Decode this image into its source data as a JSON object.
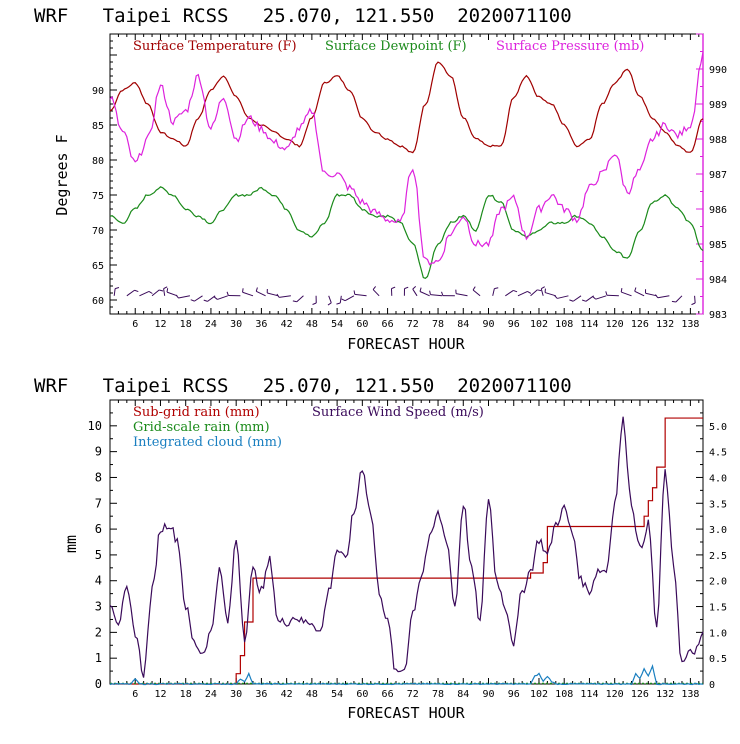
{
  "charts": [
    {
      "title": "WRF   Taipei RCSS   25.070, 121.550  2020071100",
      "xlabel": "FORECAST HOUR",
      "ylabel": "Degrees F",
      "legend": [
        "Surface Temperature (F)",
        "Surface Dewpoint (F)",
        "Surface Pressure (mb)"
      ],
      "x_ticks": [
        "6",
        "12",
        "18",
        "24",
        "30",
        "36",
        "42",
        "48",
        "54",
        "60",
        "66",
        "72",
        "78",
        "84",
        "90",
        "96",
        "102",
        "108",
        "114",
        "120",
        "126",
        "132",
        "138"
      ],
      "y_left_ticks": [
        "60",
        "65",
        "70",
        "75",
        "80",
        "85",
        "90"
      ],
      "y_right_ticks": [
        "983",
        "984",
        "985",
        "986",
        "987",
        "988",
        "989",
        "990"
      ]
    },
    {
      "title": "WRF   Taipei RCSS   25.070, 121.550  2020071100",
      "xlabel": "FORECAST HOUR",
      "ylabel": "mm",
      "legend": [
        "Sub-grid rain (mm)",
        "Surface Wind Speed (m/s)",
        "Grid-scale rain (mm)",
        "Integrated cloud (mm)"
      ],
      "x_ticks": [
        "6",
        "12",
        "18",
        "24",
        "30",
        "36",
        "42",
        "48",
        "54",
        "60",
        "66",
        "72",
        "78",
        "84",
        "90",
        "96",
        "102",
        "108",
        "114",
        "120",
        "126",
        "132",
        "138"
      ],
      "y_left_ticks": [
        "0",
        "1",
        "2",
        "3",
        "4",
        "5",
        "6",
        "7",
        "8",
        "9",
        "10"
      ],
      "y_right_ticks": [
        "0",
        "0.5",
        "1.0",
        "1.5",
        "2.0",
        "2.5",
        "3.0",
        "3.5",
        "4.0",
        "4.5",
        "5.0"
      ]
    }
  ],
  "colors": {
    "temperature": "#a00000",
    "dewpoint": "#1a8a1a",
    "pressure": "#dd22dd",
    "wind": "#3a0a5a",
    "subgrid_rain": "#b00000",
    "gridscale_rain": "#1a8a1a",
    "cloud": "#1a7fc0",
    "axis_right_top": "#dd22dd"
  },
  "chart_data": [
    {
      "type": "line",
      "title": "WRF   Taipei RCSS   25.070, 121.550  2020071100",
      "xlabel": "FORECAST HOUR",
      "ylabel": "Degrees F",
      "xlim": [
        0,
        141
      ],
      "ylim": [
        58,
        98
      ],
      "y2lim": [
        983,
        991
      ],
      "series": [
        {
          "name": "Surface Temperature (F)",
          "axis": "left",
          "x": [
            0,
            3,
            6,
            9,
            12,
            15,
            18,
            21,
            24,
            27,
            30,
            33,
            36,
            39,
            42,
            45,
            48,
            51,
            54,
            57,
            60,
            63,
            66,
            69,
            72,
            75,
            78,
            81,
            84,
            87,
            90,
            93,
            96,
            99,
            102,
            105,
            108,
            111,
            114,
            117,
            120,
            123,
            126,
            129,
            132,
            135,
            138,
            141
          ],
          "y": [
            87,
            90,
            91,
            88,
            84,
            83,
            82,
            86,
            90,
            92,
            89,
            86,
            85,
            84,
            83,
            82,
            86,
            91,
            92,
            90,
            86,
            84,
            83,
            82,
            81,
            88,
            94,
            92,
            86,
            83,
            82,
            82,
            89,
            92,
            89,
            88,
            85,
            82,
            83,
            88,
            91,
            93,
            89,
            86,
            84,
            82,
            81,
            86
          ]
        },
        {
          "name": "Surface Dewpoint (F)",
          "axis": "left",
          "x": [
            0,
            3,
            6,
            9,
            12,
            15,
            18,
            21,
            24,
            27,
            30,
            33,
            36,
            39,
            42,
            45,
            48,
            51,
            54,
            57,
            60,
            63,
            66,
            69,
            72,
            75,
            78,
            81,
            84,
            87,
            90,
            93,
            96,
            99,
            102,
            105,
            108,
            111,
            114,
            117,
            120,
            123,
            126,
            129,
            132,
            135,
            138,
            141
          ],
          "y": [
            72,
            71,
            73,
            75,
            76,
            75,
            73,
            72,
            71,
            73,
            75,
            75,
            76,
            75,
            73,
            70,
            69,
            71,
            75,
            75,
            73,
            72,
            72,
            71,
            68,
            63,
            68,
            71,
            72,
            70,
            75,
            74,
            70,
            69,
            70,
            71,
            71,
            72,
            71,
            69,
            67,
            66,
            70,
            74,
            75,
            73,
            71,
            67
          ]
        },
        {
          "name": "Surface Pressure (mb)",
          "axis": "right",
          "x": [
            0,
            3,
            6,
            9,
            12,
            15,
            18,
            21,
            24,
            27,
            30,
            33,
            36,
            39,
            42,
            45,
            48,
            51,
            54,
            57,
            60,
            63,
            66,
            69,
            72,
            75,
            78,
            81,
            84,
            87,
            90,
            93,
            96,
            99,
            102,
            105,
            108,
            111,
            114,
            117,
            120,
            123,
            126,
            129,
            132,
            135,
            138,
            141
          ],
          "y": [
            989.2,
            988.2,
            987.3,
            988.0,
            989.5,
            988.5,
            988.8,
            989.8,
            988.3,
            989.2,
            988.0,
            988.6,
            988.3,
            987.9,
            987.7,
            988.3,
            988.8,
            987.0,
            987.0,
            986.6,
            986.2,
            985.9,
            985.7,
            985.6,
            987.2,
            984.5,
            984.5,
            985.3,
            985.8,
            985.0,
            985.0,
            986.0,
            986.3,
            985.2,
            986.0,
            986.4,
            986.0,
            985.7,
            986.6,
            987.0,
            987.6,
            986.5,
            987.1,
            988.0,
            988.4,
            988.1,
            988.4,
            990.4
          ]
        }
      ],
      "wind_barbs": true
    },
    {
      "type": "line",
      "title": "WRF   Taipei RCSS   25.070, 121.550  2020071100",
      "xlabel": "FORECAST HOUR",
      "ylabel": "mm",
      "xlim": [
        0,
        141
      ],
      "ylim": [
        0,
        11
      ],
      "y2lim": [
        0,
        5.5
      ],
      "series": [
        {
          "name": "Sub-grid rain (mm)",
          "axis": "left",
          "step": true,
          "x": [
            0,
            29,
            30,
            31,
            32,
            33,
            34,
            35,
            98,
            99,
            100,
            102,
            103,
            104,
            125,
            126,
            127,
            128,
            129,
            130,
            131,
            132,
            141
          ],
          "y": [
            0,
            0,
            0.4,
            1.1,
            2.4,
            2.4,
            4.1,
            4.1,
            4.1,
            4.1,
            4.3,
            4.3,
            4.7,
            6.1,
            6.1,
            6.1,
            6.5,
            7.1,
            7.6,
            8.4,
            8.4,
            10.3,
            10.3
          ]
        },
        {
          "name": "Surface Wind Speed (m/s)",
          "axis": "right",
          "x": [
            0,
            2,
            4,
            6,
            8,
            10,
            12,
            14,
            16,
            18,
            20,
            22,
            24,
            26,
            28,
            30,
            32,
            34,
            36,
            38,
            40,
            42,
            44,
            46,
            48,
            50,
            52,
            54,
            56,
            58,
            60,
            62,
            64,
            66,
            68,
            70,
            72,
            74,
            76,
            78,
            80,
            82,
            84,
            86,
            88,
            90,
            92,
            94,
            96,
            98,
            100,
            102,
            104,
            106,
            108,
            110,
            112,
            114,
            116,
            118,
            120,
            122,
            124,
            126,
            128,
            130,
            132,
            134,
            136,
            138,
            140,
            141
          ],
          "y": [
            1.6,
            1.2,
            1.8,
            1.0,
            0.2,
            1.8,
            3.0,
            3.1,
            2.8,
            1.5,
            0.8,
            0.6,
            1.0,
            2.2,
            1.2,
            2.8,
            0.9,
            2.2,
            1.8,
            2.4,
            1.2,
            1.2,
            1.3,
            1.2,
            1.2,
            1.0,
            1.8,
            2.6,
            2.4,
            3.3,
            4.2,
            3.3,
            1.8,
            1.2,
            0.2,
            0.3,
            1.4,
            2.1,
            2.8,
            3.3,
            2.8,
            1.5,
            3.5,
            2.2,
            1.2,
            3.6,
            2.0,
            1.5,
            0.8,
            1.8,
            2.2,
            2.8,
            2.5,
            3.1,
            3.4,
            2.9,
            2.0,
            1.8,
            2.2,
            2.2,
            3.5,
            5.1,
            3.5,
            2.6,
            3.1,
            1.1,
            4.1,
            2.3,
            0.4,
            0.6,
            0.7,
            1.0
          ]
        },
        {
          "name": "Grid-scale rain (mm)",
          "axis": "left",
          "x": [
            0,
            141
          ],
          "y": [
            0.02,
            0.02
          ]
        },
        {
          "name": "Integrated cloud (mm)",
          "axis": "left",
          "x": [
            0,
            5,
            6,
            7,
            8,
            30,
            31,
            32,
            33,
            34,
            100,
            101,
            102,
            103,
            104,
            105,
            106,
            124,
            125,
            126,
            127,
            128,
            129,
            130,
            141
          ],
          "y": [
            0,
            0,
            0.2,
            0,
            0,
            0,
            0.2,
            0.1,
            0.4,
            0,
            0,
            0.3,
            0.4,
            0.1,
            0.3,
            0.1,
            0,
            0,
            0.4,
            0.2,
            0.6,
            0.3,
            0.7,
            0,
            0
          ]
        }
      ]
    }
  ]
}
